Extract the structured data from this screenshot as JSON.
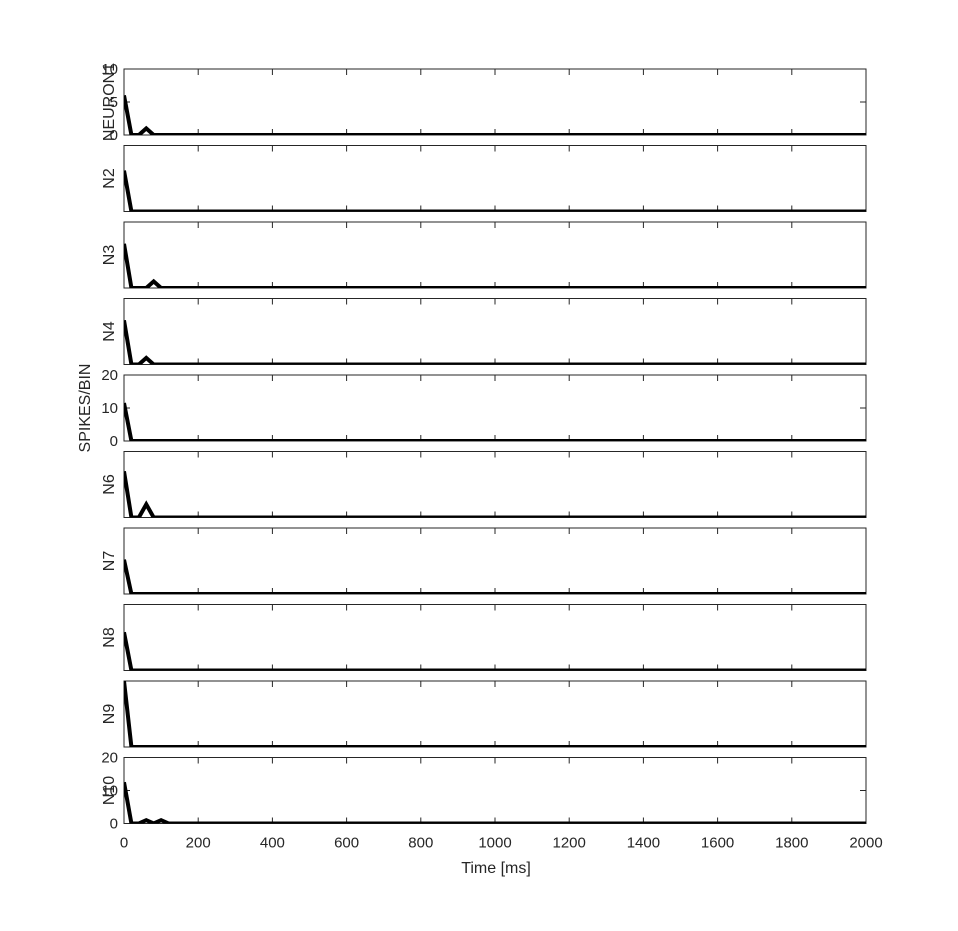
{
  "chart_data": {
    "type": "line",
    "xlabel": "Time [ms]",
    "xlim": [
      0,
      2000
    ],
    "xticks": [
      0,
      200,
      400,
      600,
      800,
      1000,
      1200,
      1400,
      1600,
      1800,
      2000
    ],
    "xtick_labels": [
      "0",
      "200",
      "400",
      "600",
      "800",
      "1000",
      "1200",
      "1400",
      "1600",
      "1800",
      "2000"
    ],
    "shared_ylabel": "SPIKES/BIN",
    "grid": false,
    "line_color": "#000000",
    "panels": [
      {
        "ylabel": "NEURON1",
        "ylim": [
          0,
          10
        ],
        "yticks": [
          0,
          5,
          10
        ],
        "ytick_labels": [
          "0",
          "5",
          "10"
        ],
        "points": [
          [
            0,
            6
          ],
          [
            20,
            0
          ],
          [
            40,
            0
          ],
          [
            60,
            1
          ],
          [
            80,
            0
          ],
          [
            2000,
            0
          ]
        ]
      },
      {
        "ylabel": "N2",
        "ylim": [
          0,
          10
        ],
        "yticks": [],
        "ytick_labels": [],
        "points": [
          [
            0,
            6.2
          ],
          [
            20,
            0
          ],
          [
            2000,
            0
          ]
        ]
      },
      {
        "ylabel": "N3",
        "ylim": [
          0,
          10
        ],
        "yticks": [],
        "ytick_labels": [],
        "points": [
          [
            0,
            6.7
          ],
          [
            20,
            0
          ],
          [
            60,
            0
          ],
          [
            80,
            1
          ],
          [
            100,
            0
          ],
          [
            2000,
            0
          ]
        ]
      },
      {
        "ylabel": "N4",
        "ylim": [
          0,
          10
        ],
        "yticks": [],
        "ytick_labels": [],
        "points": [
          [
            0,
            6.7
          ],
          [
            20,
            0
          ],
          [
            40,
            0
          ],
          [
            60,
            1
          ],
          [
            80,
            0
          ],
          [
            2000,
            0
          ]
        ]
      },
      {
        "ylabel": "",
        "ylim": [
          0,
          20
        ],
        "yticks": [
          0,
          10,
          20
        ],
        "ytick_labels": [
          "0",
          "10",
          "20"
        ],
        "points": [
          [
            0,
            11.5
          ],
          [
            20,
            0
          ],
          [
            2000,
            0
          ]
        ]
      },
      {
        "ylabel": "N6",
        "ylim": [
          0,
          10
        ],
        "yticks": [],
        "ytick_labels": [],
        "points": [
          [
            0,
            7
          ],
          [
            20,
            0
          ],
          [
            40,
            0
          ],
          [
            60,
            2
          ],
          [
            80,
            0
          ],
          [
            2000,
            0
          ]
        ]
      },
      {
        "ylabel": "N7",
        "ylim": [
          0,
          10
        ],
        "yticks": [],
        "ytick_labels": [],
        "points": [
          [
            0,
            5.2
          ],
          [
            20,
            0
          ],
          [
            2000,
            0
          ]
        ]
      },
      {
        "ylabel": "N8",
        "ylim": [
          0,
          10
        ],
        "yticks": [],
        "ytick_labels": [],
        "points": [
          [
            0,
            5.8
          ],
          [
            20,
            0
          ],
          [
            2000,
            0
          ]
        ]
      },
      {
        "ylabel": "N9",
        "ylim": [
          0,
          10
        ],
        "yticks": [],
        "ytick_labels": [],
        "points": [
          [
            0,
            10
          ],
          [
            20,
            0
          ],
          [
            2000,
            0
          ]
        ]
      },
      {
        "ylabel": "N10",
        "ylim": [
          0,
          20
        ],
        "yticks": [
          0,
          10,
          20
        ],
        "ytick_labels": [
          "0",
          "10",
          "20"
        ],
        "points": [
          [
            0,
            12.5
          ],
          [
            20,
            0
          ],
          [
            40,
            0
          ],
          [
            60,
            1
          ],
          [
            80,
            0
          ],
          [
            100,
            1
          ],
          [
            120,
            0
          ],
          [
            2000,
            0
          ]
        ]
      }
    ]
  }
}
